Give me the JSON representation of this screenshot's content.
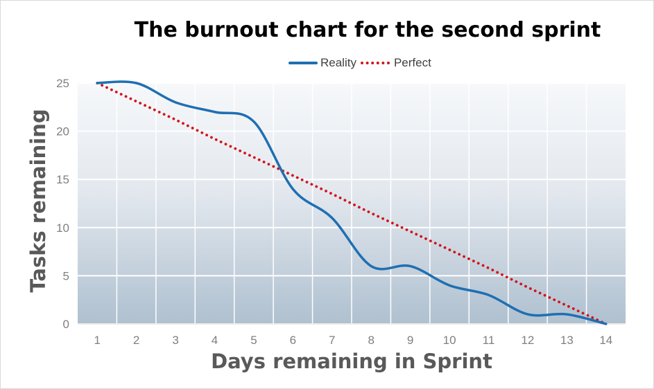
{
  "chart_data": {
    "type": "line",
    "title": "The burnout chart for the second sprint",
    "xlabel": "Days remaining in Sprint",
    "ylabel": "Tasks remaining",
    "categories": [
      "1",
      "2",
      "3",
      "4",
      "5",
      "6",
      "7",
      "8",
      "9",
      "10",
      "11",
      "12",
      "13",
      "14"
    ],
    "ylim": [
      0,
      25
    ],
    "yticks": [
      "0",
      "5",
      "10",
      "15",
      "20",
      "25"
    ],
    "legend_position": "top-center",
    "grid": true,
    "series": [
      {
        "name": "Reality",
        "color": "#1f6fb2",
        "style": "solid",
        "smooth": true,
        "values": [
          25,
          25,
          23,
          22,
          21,
          14,
          11,
          6,
          6,
          4,
          3,
          1,
          1,
          0
        ]
      },
      {
        "name": "Perfect",
        "color": "#d1141b",
        "style": "dotted",
        "smooth": false,
        "values": [
          25,
          23.1,
          21.2,
          19.2,
          17.3,
          15.4,
          13.5,
          11.5,
          9.6,
          7.7,
          5.8,
          3.8,
          1.9,
          0
        ]
      }
    ]
  }
}
